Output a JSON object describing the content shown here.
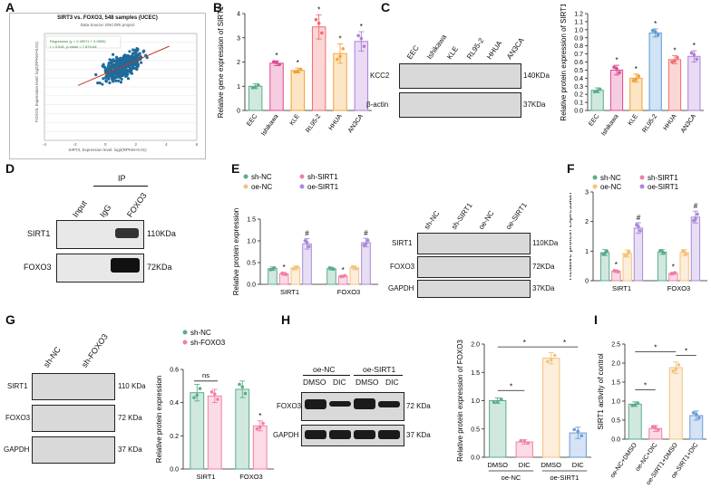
{
  "panels": {
    "A": {
      "letter": "A",
      "title": "SIRT3 vs. FOXO3, 548 samples (UCEC)",
      "subtitle": "Data Source: ENCORI project",
      "legend_regression": "Regression (y = 0.4907x + 3.9893)",
      "legend_stats": "r = 0.641, p-value = 7.87e-64",
      "xlabel": "SIRT3, Expression level: log2(RPKM+0.01)",
      "ylabel": "FOXO3, Expression level: log2(RPKM+0.01)",
      "colors": {
        "points": "#1f6b9a",
        "line": "#c0392b"
      }
    },
    "B": {
      "letter": "B",
      "ylabel": "Relative gene expression of SIRT1",
      "star": "*"
    },
    "C": {
      "letter": "C",
      "cell_lines": [
        "EEC",
        "Ishikawa",
        "KLE",
        "RL95-2",
        "HHUA",
        "AN3CA"
      ],
      "blot_labels": [
        "KCC2",
        "β-actin"
      ],
      "blot_sizes": [
        "140KDa",
        "37KDa"
      ],
      "ylabel": "Relative protein expression of SIRT1"
    },
    "D": {
      "letter": "D",
      "ip_label": "IP",
      "lanes": [
        "Input",
        "IgG",
        "FOXO3"
      ],
      "rows": [
        "SIRT1",
        "FOXO3"
      ],
      "sizes": [
        "110KDa",
        "72KDa"
      ]
    },
    "E": {
      "letter": "E",
      "legend": [
        "sh-NC",
        "oe-NC",
        "sh-SIRT1",
        "oe-SIRT1"
      ],
      "ylabel": "Relative protein expression",
      "blot_lanes": [
        "sh-NC",
        "sh-SIRT1",
        "oe-NC",
        "oe-SIRT1"
      ],
      "blot_rows": [
        "SIRT1",
        "FOXO3",
        "GAPDH"
      ],
      "blot_sizes": [
        "110KDa",
        "72KDa",
        "37KDa"
      ]
    },
    "F": {
      "letter": "F",
      "legend": [
        "sh-NC",
        "oe-NC",
        "sh-SIRT1",
        "oe-SIRT1"
      ],
      "ylabel": "Relative protein expression"
    },
    "G": {
      "letter": "G",
      "blot_lanes": [
        "sh-NC",
        "sh-FOXO3"
      ],
      "blot_rows": [
        "SIRT1",
        "FOXO3",
        "GAPDH"
      ],
      "blot_sizes": [
        "110 KDa",
        "72 KDa",
        "37 KDa"
      ],
      "legend": [
        "sh-NC",
        "sh-FOXO3"
      ],
      "ylabel": "Relative protein expression",
      "ns": "ns"
    },
    "H": {
      "letter": "H",
      "group_labels": [
        "oe-NC",
        "oe-SIRT1"
      ],
      "lanes": [
        "DMSO",
        "DIC",
        "DMSO",
        "DIC"
      ],
      "blot_rows": [
        "FOXO3",
        "GAPDH"
      ],
      "blot_sizes": [
        "72 KDa",
        "37 KDa"
      ],
      "ylabel": "Relative protein expression of FOXO3",
      "x_tick_labels": [
        "DMSO",
        "DIC",
        "DMSO",
        "DIC"
      ],
      "x_group_labels": [
        "oe-NC",
        "oe-SIRT1"
      ]
    },
    "I": {
      "letter": "I",
      "ylabel": "SIRT1 activity of control"
    }
  },
  "chart_data": [
    {
      "id": "A",
      "type": "scatter",
      "title": "SIRT3 vs. FOXO3, 548 samples (UCEC)",
      "xlabel": "SIRT3, Expression level: log2(RPKM+0.01)",
      "ylabel": "FOXO3, Expression level: log2(RPKM+0.01)",
      "xlim": [
        -4,
        6
      ],
      "ylim": [
        -1,
        7
      ],
      "xticks": [
        "-4",
        "-2",
        "0",
        "2",
        "4",
        "6"
      ],
      "regression": {
        "slope": 0.4907,
        "intercept": 3.9893
      }
    },
    {
      "id": "B",
      "type": "bar",
      "categories": [
        "EEC",
        "Ishikawa",
        "KLE",
        "RL95-2",
        "HHUA",
        "AN3CA"
      ],
      "values": [
        1.0,
        1.95,
        1.65,
        3.45,
        2.35,
        2.85
      ],
      "errors": [
        0.1,
        0.1,
        0.1,
        0.5,
        0.4,
        0.4
      ],
      "significance": [
        "",
        "*",
        "*",
        "*",
        "*",
        "*"
      ],
      "colors": [
        "#5aae8a",
        "#e0488f",
        "#f0a030",
        "#f26b6b",
        "#f3a63a",
        "#b07ed6"
      ],
      "ylabel": "Relative gene expression of SIRT1",
      "ylim": [
        0,
        4
      ],
      "yticks": [
        "0",
        "1",
        "2",
        "3",
        "4"
      ]
    },
    {
      "id": "C",
      "type": "bar",
      "categories": [
        "EEC",
        "Ishikawa",
        "KLE",
        "RL95-2",
        "HHUA",
        "AN3CA"
      ],
      "values": [
        0.25,
        0.5,
        0.4,
        0.96,
        0.63,
        0.67
      ],
      "errors": [
        0.03,
        0.06,
        0.05,
        0.05,
        0.05,
        0.07
      ],
      "significance": [
        "",
        "*",
        "*",
        "*",
        "*",
        "*"
      ],
      "colors": [
        "#5aae8a",
        "#e0488f",
        "#f0a030",
        "#5a9ad6",
        "#f26b6b",
        "#b07ed6"
      ],
      "ylabel": "Relative protein expression of SIRT1",
      "ylim": [
        0,
        1.2
      ],
      "yticks": [
        "0.0",
        "0.1",
        "0.2",
        "0.3",
        "0.4",
        "0.5",
        "0.6",
        "0.7",
        "0.8",
        "0.9",
        "1.0",
        "1.1",
        "1.2"
      ]
    },
    {
      "id": "E",
      "type": "bar",
      "categories": [
        "SIRT1",
        "FOXO3"
      ],
      "series": [
        {
          "name": "sh-NC",
          "values": [
            0.36,
            0.36
          ],
          "errors": [
            0.04,
            0.03
          ],
          "sig": [
            "",
            ""
          ]
        },
        {
          "name": "sh-SIRT1",
          "values": [
            0.24,
            0.19
          ],
          "errors": [
            0.03,
            0.02
          ],
          "sig": [
            "*",
            "*"
          ]
        },
        {
          "name": "oe-NC",
          "values": [
            0.38,
            0.38
          ],
          "errors": [
            0.04,
            0.04
          ],
          "sig": [
            "",
            ""
          ]
        },
        {
          "name": "oe-SIRT1",
          "values": [
            0.93,
            0.96
          ],
          "errors": [
            0.12,
            0.1
          ],
          "sig": [
            "#",
            "#"
          ]
        }
      ],
      "colors": [
        "#5aae8a",
        "#f07fa6",
        "#f3c27a",
        "#a98ad8"
      ],
      "ylabel": "Relative protein expression",
      "ylim": [
        0,
        1.5
      ],
      "yticks": [
        "0.0",
        "0.5",
        "1.0",
        "1.5"
      ]
    },
    {
      "id": "F",
      "type": "bar",
      "categories": [
        "SIRT1",
        "FOXO3"
      ],
      "series": [
        {
          "name": "sh-NC",
          "values": [
            0.95,
            0.97
          ],
          "errors": [
            0.1,
            0.08
          ],
          "sig": [
            "",
            ""
          ]
        },
        {
          "name": "sh-SIRT1",
          "values": [
            0.32,
            0.25
          ],
          "errors": [
            0.04,
            0.04
          ],
          "sig": [
            "*",
            "*"
          ]
        },
        {
          "name": "oe-NC",
          "values": [
            0.92,
            0.95
          ],
          "errors": [
            0.12,
            0.1
          ],
          "sig": [
            "",
            ""
          ]
        },
        {
          "name": "oe-SIRT1",
          "values": [
            1.78,
            2.15
          ],
          "errors": [
            0.18,
            0.2
          ],
          "sig": [
            "#",
            "#"
          ]
        }
      ],
      "colors": [
        "#5aae8a",
        "#f07fa6",
        "#f3c27a",
        "#a98ad8"
      ],
      "ylabel": "Relative protein expression",
      "ylim": [
        0,
        3
      ],
      "yticks": [
        "0",
        "1",
        "2",
        "3"
      ]
    },
    {
      "id": "G",
      "type": "bar",
      "categories": [
        "SIRT1",
        "FOXO3"
      ],
      "series": [
        {
          "name": "sh-NC",
          "values": [
            0.46,
            0.48
          ],
          "errors": [
            0.05,
            0.05
          ],
          "sig": [
            "",
            ""
          ]
        },
        {
          "name": "sh-FOXO3",
          "values": [
            0.44,
            0.26
          ],
          "errors": [
            0.04,
            0.03
          ],
          "sig": [
            "",
            "*"
          ]
        }
      ],
      "colors": [
        "#5aae8a",
        "#f07fa6"
      ],
      "ylabel": "Relative protein expression",
      "ylim": [
        0,
        0.6
      ],
      "yticks": [
        "0.0",
        "0.2",
        "0.4",
        "0.6"
      ],
      "annotations": [
        {
          "category": "SIRT1",
          "text": "ns"
        }
      ]
    },
    {
      "id": "H",
      "type": "bar",
      "categories": [
        "DMSO",
        "DIC",
        "DMSO",
        "DIC"
      ],
      "groups": [
        "oe-NC",
        "oe-SIRT1"
      ],
      "values": [
        1.0,
        0.27,
        1.75,
        0.43
      ],
      "errors": [
        0.05,
        0.04,
        0.1,
        0.1
      ],
      "colors": [
        "#5aae8a",
        "#f07fa6",
        "#f3c27a",
        "#6a9bd8"
      ],
      "ylabel": "Relative protein expression of FOXO3",
      "ylim": [
        0,
        2.0
      ],
      "yticks": [
        "0.0",
        "0.5",
        "1.0",
        "1.5",
        "2.0"
      ],
      "brackets": [
        {
          "from": 0,
          "to": 1,
          "text": "*"
        },
        {
          "from": 0,
          "to": 2,
          "text": "*"
        },
        {
          "from": 2,
          "to": 3,
          "text": "*"
        }
      ]
    },
    {
      "id": "I",
      "type": "bar",
      "categories": [
        "oe-NC+DMSO",
        "oe-NC+DIC",
        "oe-SIRT1+DMSO",
        "oe-SIRT1+DIC"
      ],
      "values": [
        0.92,
        0.28,
        1.88,
        0.62
      ],
      "errors": [
        0.06,
        0.08,
        0.15,
        0.12
      ],
      "colors": [
        "#5aae8a",
        "#f07fa6",
        "#f3c27a",
        "#6a9bd8"
      ],
      "ylabel": "SIRT1 activity of control",
      "ylim": [
        0,
        2.5
      ],
      "yticks": [
        "0.0",
        "0.5",
        "1.0",
        "1.5",
        "2.0",
        "2.5"
      ],
      "brackets": [
        {
          "from": 0,
          "to": 1,
          "text": "*"
        },
        {
          "from": 0,
          "to": 2,
          "text": "*"
        },
        {
          "from": 2,
          "to": 3,
          "text": "*"
        }
      ]
    }
  ]
}
